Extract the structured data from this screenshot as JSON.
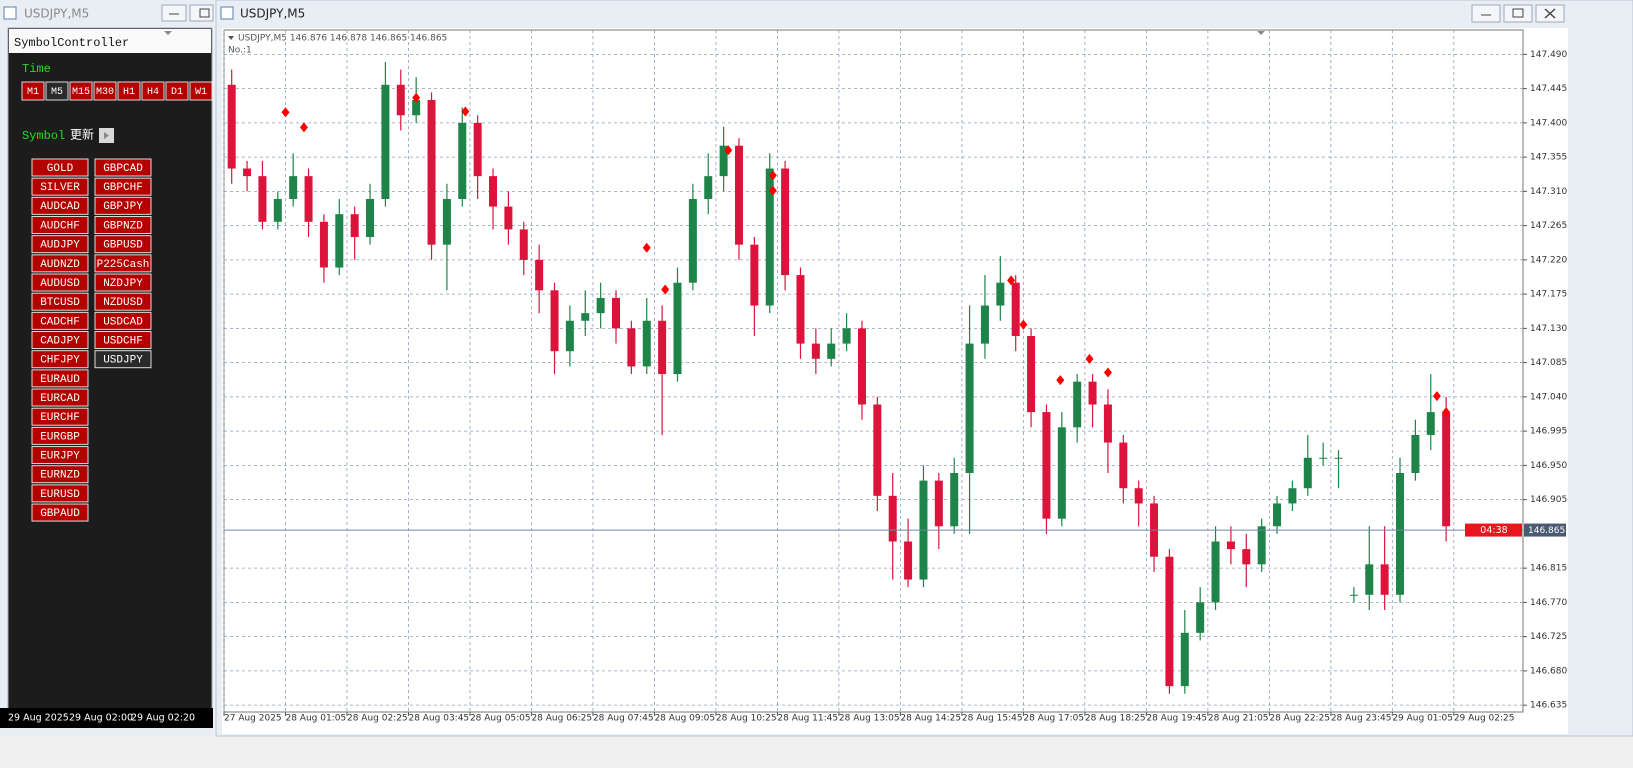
{
  "left_window": {
    "title": "USDJPY,M5",
    "panel_title": "SymbolController",
    "time_label": "Time",
    "timeframes": [
      "M1",
      "M5",
      "M15",
      "M30",
      "H1",
      "H4",
      "D1",
      "W1"
    ],
    "selected_timeframe_index": 1,
    "symbol_label": "Symbol",
    "refresh_label": "更新",
    "symbols_col1": [
      "GOLD",
      "SILVER",
      "AUDCAD",
      "AUDCHF",
      "AUDJPY",
      "AUDNZD",
      "AUDUSD",
      "BTCUSD",
      "CADCHF",
      "CADJPY",
      "CHFJPY",
      "EURAUD",
      "EURCAD",
      "EURCHF",
      "EURGBP",
      "EURJPY",
      "EURNZD",
      "EURUSD",
      "GBPAUD"
    ],
    "symbols_col2": [
      "GBPCAD",
      "GBPCHF",
      "GBPJPY",
      "GBPNZD",
      "GBPUSD",
      "P225Cash",
      "NZDJPY",
      "NZDUSD",
      "USDCAD",
      "USDCHF",
      "USDJPY"
    ],
    "selected_symbol_col2_index": 10,
    "bottom_times": [
      "29 Aug 2025",
      "29 Aug 02:00",
      "29 Aug 02:20"
    ]
  },
  "chart_window": {
    "title": "USDJPY,M5"
  },
  "chart_data": {
    "type": "candlestick",
    "subtitle": "USDJPY,M5  146.876 146.878 146.865 146.865",
    "label": "No.:1",
    "open": [
      147.45,
      147.34,
      147.33,
      147.27,
      147.3,
      147.33,
      147.27,
      147.21,
      147.28,
      147.25,
      147.3,
      147.45,
      147.41,
      147.43,
      147.24,
      147.3,
      147.4,
      147.33,
      147.29,
      147.26,
      147.22,
      147.18,
      147.1,
      147.14,
      147.15,
      147.17,
      147.13,
      147.08,
      147.14,
      147.07,
      147.19,
      147.3,
      147.33,
      147.37,
      147.24,
      147.16,
      147.34,
      147.2,
      147.11,
      147.09,
      147.11,
      147.13,
      147.03,
      146.91,
      146.85,
      146.8,
      146.93,
      146.87,
      146.94,
      147.11,
      147.16,
      147.19,
      147.12,
      147.02,
      146.88,
      147.0,
      147.06,
      147.03,
      146.98,
      146.92,
      146.9,
      146.83,
      146.66,
      146.73,
      146.77,
      146.85,
      146.84,
      146.82,
      146.87,
      146.9,
      146.92,
      146.96,
      146.96,
      146.78,
      146.78,
      146.82,
      146.78,
      146.94,
      146.99,
      147.02
    ],
    "high": [
      147.47,
      147.35,
      147.35,
      147.31,
      147.36,
      147.34,
      147.28,
      147.3,
      147.29,
      147.32,
      147.48,
      147.47,
      147.46,
      147.44,
      147.32,
      147.42,
      147.41,
      147.34,
      147.31,
      147.27,
      147.24,
      147.19,
      147.16,
      147.18,
      147.19,
      147.18,
      147.14,
      147.17,
      147.16,
      147.21,
      147.32,
      147.36,
      147.395,
      147.38,
      147.25,
      147.36,
      147.35,
      147.21,
      147.13,
      147.13,
      147.15,
      147.14,
      147.04,
      146.94,
      146.88,
      146.95,
      146.94,
      146.96,
      147.16,
      147.2,
      147.225,
      147.2,
      147.13,
      147.03,
      147.02,
      147.07,
      147.07,
      147.05,
      146.99,
      146.93,
      146.91,
      146.84,
      146.76,
      146.79,
      146.87,
      146.87,
      146.86,
      146.88,
      146.91,
      146.93,
      146.99,
      146.98,
      146.97,
      146.79,
      146.87,
      146.87,
      146.96,
      147.01,
      147.07,
      147.04
    ],
    "low": [
      147.32,
      147.31,
      147.26,
      147.26,
      147.29,
      147.25,
      147.19,
      147.2,
      147.22,
      147.24,
      147.29,
      147.39,
      147.4,
      147.22,
      147.18,
      147.29,
      147.3,
      147.26,
      147.24,
      147.2,
      147.15,
      147.07,
      147.08,
      147.12,
      147.13,
      147.11,
      147.07,
      147.07,
      146.99,
      147.06,
      147.18,
      147.28,
      147.31,
      147.22,
      147.12,
      147.15,
      147.18,
      147.09,
      147.07,
      147.08,
      147.1,
      147.01,
      146.89,
      146.8,
      146.79,
      146.79,
      146.84,
      146.86,
      146.86,
      147.09,
      147.14,
      147.1,
      147.0,
      146.86,
      146.87,
      146.98,
      147.0,
      146.94,
      146.9,
      146.87,
      146.81,
      146.65,
      146.65,
      146.72,
      146.76,
      146.82,
      146.79,
      146.81,
      146.86,
      146.89,
      146.91,
      146.95,
      146.92,
      146.77,
      146.76,
      146.76,
      146.77,
      146.93,
      146.97,
      146.85
    ],
    "close": [
      147.34,
      147.33,
      147.27,
      147.3,
      147.33,
      147.27,
      147.21,
      147.28,
      147.25,
      147.3,
      147.45,
      147.41,
      147.43,
      147.24,
      147.3,
      147.4,
      147.33,
      147.29,
      147.26,
      147.22,
      147.18,
      147.1,
      147.14,
      147.15,
      147.17,
      147.13,
      147.08,
      147.14,
      147.07,
      147.19,
      147.3,
      147.33,
      147.37,
      147.24,
      147.16,
      147.34,
      147.2,
      147.11,
      147.09,
      147.11,
      147.13,
      147.03,
      146.91,
      146.85,
      146.8,
      146.93,
      146.87,
      146.94,
      147.11,
      147.16,
      147.19,
      147.12,
      147.02,
      146.88,
      147.0,
      147.06,
      147.03,
      146.98,
      146.92,
      146.9,
      146.83,
      146.66,
      146.73,
      146.77,
      146.85,
      146.84,
      146.82,
      146.87,
      146.9,
      146.92,
      146.96,
      146.96,
      146.96,
      146.78,
      146.82,
      146.78,
      146.94,
      146.99,
      147.02,
      146.87
    ],
    "up_color": "#1e8449",
    "down_color": "#dc143c",
    "signals": {
      "x": [
        4.0,
        5.2,
        12.5,
        15.7,
        27.5,
        28.7,
        32.8,
        35.7,
        35.7,
        51.2,
        52.0,
        54.4,
        56.3,
        57.5,
        78.9,
        79.5
      ],
      "y": [
        147.414,
        147.394,
        147.433,
        147.415,
        147.236,
        147.181,
        147.364,
        147.331,
        147.311,
        147.193,
        147.135,
        147.062,
        147.09,
        147.072,
        147.041,
        147.02
      ],
      "color": "#ff0000"
    },
    "current_price": 146.865,
    "countdown": "04:38",
    "xlim": [
      0,
      84.5
    ],
    "xticks": [
      {
        "value": 0,
        "label": "27 Aug 2025"
      },
      {
        "value": 4,
        "label": "28 Aug 01:05"
      },
      {
        "value": 8,
        "label": "28 Aug 02:25"
      },
      {
        "value": 12,
        "label": "28 Aug 03:45"
      },
      {
        "value": 16,
        "label": "28 Aug 05:05"
      },
      {
        "value": 20,
        "label": "28 Aug 06:25"
      },
      {
        "value": 24,
        "label": "28 Aug 07:45"
      },
      {
        "value": 28,
        "label": "28 Aug 09:05"
      },
      {
        "value": 32,
        "label": "28 Aug 10:25"
      },
      {
        "value": 36,
        "label": "28 Aug 11:45"
      },
      {
        "value": 40,
        "label": "28 Aug 13:05"
      },
      {
        "value": 44,
        "label": "28 Aug 14:25"
      },
      {
        "value": 48,
        "label": "28 Aug 15:45"
      },
      {
        "value": 52,
        "label": "28 Aug 17:05"
      },
      {
        "value": 56,
        "label": "28 Aug 18:25"
      },
      {
        "value": 60,
        "label": "28 Aug 19:45"
      },
      {
        "value": 64,
        "label": "28 Aug 21:05"
      },
      {
        "value": 68,
        "label": "28 Aug 22:25"
      },
      {
        "value": 72,
        "label": "28 Aug 23:45"
      },
      {
        "value": 76,
        "label": "29 Aug 01:05"
      },
      {
        "value": 80,
        "label": "29 Aug 02:25"
      }
    ],
    "ylim": [
      146.626,
      147.522
    ],
    "yticks": [
      {
        "value": 147.49,
        "label": "147.490"
      },
      {
        "value": 147.445,
        "label": "147.445"
      },
      {
        "value": 147.4,
        "label": "147.400"
      },
      {
        "value": 147.355,
        "label": "147.355"
      },
      {
        "value": 147.31,
        "label": "147.310"
      },
      {
        "value": 147.265,
        "label": "147.265"
      },
      {
        "value": 147.22,
        "label": "147.220"
      },
      {
        "value": 147.175,
        "label": "147.175"
      },
      {
        "value": 147.13,
        "label": "147.130"
      },
      {
        "value": 147.085,
        "label": "147.085"
      },
      {
        "value": 147.04,
        "label": "147.040"
      },
      {
        "value": 146.995,
        "label": "146.995"
      },
      {
        "value": 146.95,
        "label": "146.950"
      },
      {
        "value": 146.905,
        "label": "146.905"
      },
      {
        "value": 146.815,
        "label": "146.815"
      },
      {
        "value": 146.77,
        "label": "146.770"
      },
      {
        "value": 146.725,
        "label": "146.725"
      },
      {
        "value": 146.68,
        "label": "146.680"
      },
      {
        "value": 146.635,
        "label": "146.635"
      }
    ],
    "grid": true
  }
}
